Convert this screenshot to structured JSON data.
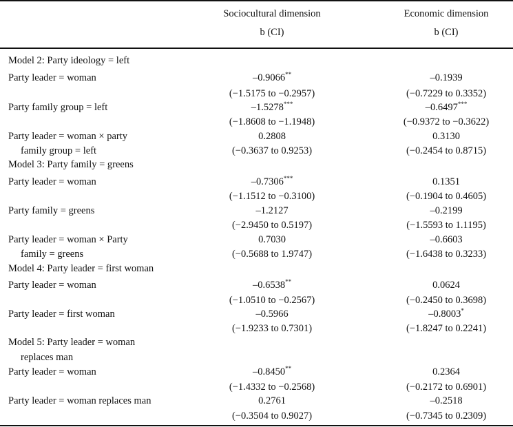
{
  "header": {
    "col1_title": "Sociocultural dimension",
    "col1_sub": "b (CI)",
    "col2_title": "Economic dimension",
    "col2_sub": "b (CI)"
  },
  "rows": [
    {
      "type": "model",
      "label": "Model 2: Party ideology = left"
    },
    {
      "type": "var",
      "label": [
        "Party leader = woman"
      ],
      "socio": {
        "b": "–0.9066",
        "stars": "**",
        "ci": "(−1.5175 to −0.2957)"
      },
      "econ": {
        "b": "–0.1939",
        "stars": "",
        "ci": "(−0.7229 to 0.3352)"
      }
    },
    {
      "type": "var",
      "label": [
        "Party family group = left"
      ],
      "socio": {
        "b": "–1.5278",
        "stars": "***",
        "ci": "(−1.8608 to −1.1948)"
      },
      "econ": {
        "b": "–0.6497",
        "stars": "***",
        "ci": "(−0.9372 to −0.3622)"
      }
    },
    {
      "type": "var",
      "label": [
        "Party leader = woman × party",
        "family group = left"
      ],
      "socio": {
        "b": "0.2808",
        "stars": "",
        "ci": "(−0.3637 to 0.9253)"
      },
      "econ": {
        "b": "0.3130",
        "stars": "",
        "ci": "(−0.2454 to 0.8715)"
      }
    },
    {
      "type": "model",
      "label": "Model 3: Party family = greens"
    },
    {
      "type": "var",
      "label": [
        "Party leader = woman"
      ],
      "socio": {
        "b": "–0.7306",
        "stars": "***",
        "ci": "(−1.1512 to −0.3100)"
      },
      "econ": {
        "b": "0.1351",
        "stars": "",
        "ci": "(−0.1904 to 0.4605)"
      }
    },
    {
      "type": "var",
      "label": [
        "Party family = greens"
      ],
      "socio": {
        "b": "–1.2127",
        "stars": "",
        "ci": "(−2.9450 to 0.5197)"
      },
      "econ": {
        "b": "–0.2199",
        "stars": "",
        "ci": "(−1.5593 to 1.1195)"
      }
    },
    {
      "type": "var",
      "label": [
        "Party leader = woman × Party",
        "family = greens"
      ],
      "socio": {
        "b": "0.7030",
        "stars": "",
        "ci": "(−0.5688 to 1.9747)"
      },
      "econ": {
        "b": "–0.6603",
        "stars": "",
        "ci": "(−1.6438 to 0.3233)"
      }
    },
    {
      "type": "model",
      "label": "Model 4: Party leader = first woman"
    },
    {
      "type": "var",
      "label": [
        "Party leader = woman"
      ],
      "socio": {
        "b": "–0.6538",
        "stars": "**",
        "ci": "(−1.0510 to −0.2567)"
      },
      "econ": {
        "b": "0.0624",
        "stars": "",
        "ci": "(−0.2450 to 0.3698)"
      }
    },
    {
      "type": "var",
      "label": [
        "Party leader = first woman"
      ],
      "socio": {
        "b": "–0.5966",
        "stars": "",
        "ci": "(−1.9233 to 0.7301)"
      },
      "econ": {
        "b": "–0.8003",
        "stars": "*",
        "ci": "(−1.8247 to 0.2241)"
      }
    },
    {
      "type": "model",
      "label": "Model 5: Party leader = woman",
      "label2": "replaces man"
    },
    {
      "type": "var",
      "label": [
        "Party leader = woman"
      ],
      "socio": {
        "b": "–0.8450",
        "stars": "**",
        "ci": "(−1.4332 to −0.2568)"
      },
      "econ": {
        "b": "0.2364",
        "stars": "",
        "ci": "(−0.2172 to 0.6901)"
      }
    },
    {
      "type": "var",
      "label": [
        "Party leader = woman replaces man"
      ],
      "socio": {
        "b": "0.2761",
        "stars": "",
        "ci": "(−0.3504 to 0.9027)"
      },
      "econ": {
        "b": "–0.2518",
        "stars": "",
        "ci": "(−0.7345 to 0.2309)"
      }
    }
  ]
}
